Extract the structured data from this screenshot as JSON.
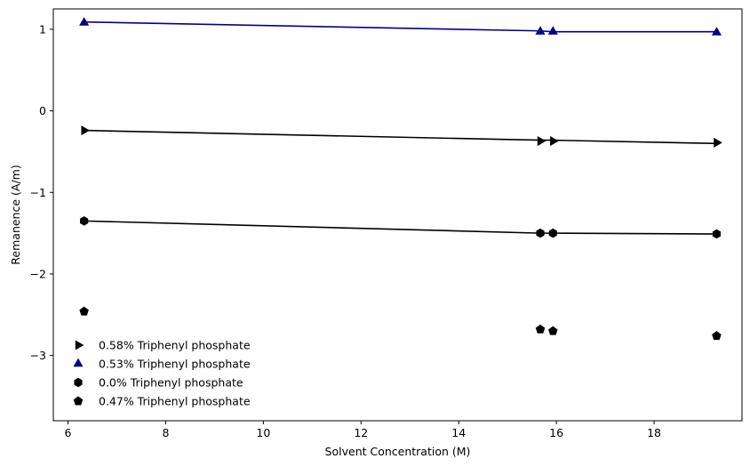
{
  "chart_data": {
    "type": "scatter",
    "title": "",
    "xlabel": "Solvent Concentration (M)",
    "ylabel": "Remanence (A/m)",
    "xlim": [
      5.7,
      19.8
    ],
    "ylim": [
      -3.8,
      1.25
    ],
    "xticks": [
      6,
      8,
      10,
      12,
      14,
      16,
      18
    ],
    "xtick_labels": [
      "6",
      "8",
      "10",
      "12",
      "14",
      "16",
      "18"
    ],
    "yticks": [
      1,
      0,
      -1,
      -2,
      -3
    ],
    "ytick_labels": [
      "1",
      "0",
      "−1",
      "−2",
      "−3"
    ],
    "grid": false,
    "legend_position": "lower-left",
    "series": [
      {
        "name": "0.58% Triphenyl phosphate",
        "marker": "triangle-right",
        "color": "#000000",
        "x": [
          6.33,
          15.67,
          15.93,
          19.28
        ],
        "y": [
          -0.24,
          -0.37,
          -0.37,
          -0.39
        ],
        "fit_line": {
          "x": [
            6.33,
            15.67,
            15.93,
            19.28
          ],
          "y": [
            -0.24,
            -0.36,
            -0.36,
            -0.4
          ],
          "color": "#000000"
        }
      },
      {
        "name": "0.53% Triphenyl phosphate",
        "marker": "triangle-up",
        "color": "#00008b",
        "x": [
          6.33,
          15.67,
          15.93,
          19.28
        ],
        "y": [
          1.08,
          0.97,
          0.97,
          0.96
        ],
        "fit_line": {
          "x": [
            6.33,
            15.67,
            15.93,
            19.28
          ],
          "y": [
            1.09,
            0.98,
            0.97,
            0.97
          ],
          "color": "#00008b"
        }
      },
      {
        "name": "0.0% Triphenyl phosphate",
        "marker": "hexagon",
        "color": "#000000",
        "x": [
          6.33,
          15.67,
          15.93,
          19.28
        ],
        "y": [
          -1.35,
          -1.5,
          -1.5,
          -1.51
        ],
        "fit_line": {
          "x": [
            6.33,
            15.67,
            15.93,
            19.28
          ],
          "y": [
            -1.35,
            -1.5,
            -1.5,
            -1.51
          ],
          "color": "#000000"
        }
      },
      {
        "name": "0.47% Triphenyl phosphate",
        "marker": "pentagon",
        "color": "#000000",
        "x": [
          6.33,
          15.67,
          15.93,
          19.28
        ],
        "y": [
          -2.46,
          -2.68,
          -2.7,
          -2.76
        ]
      }
    ]
  }
}
